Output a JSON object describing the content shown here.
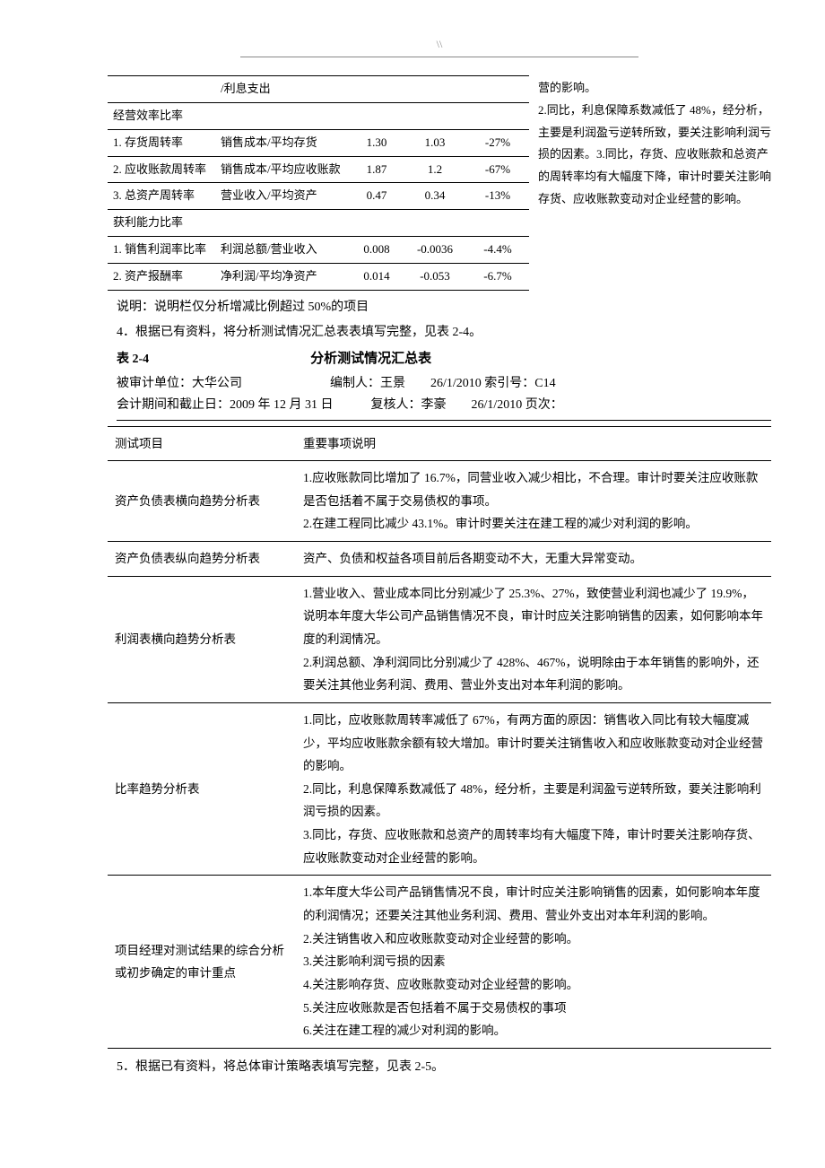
{
  "page_mark": "\\\\",
  "ratio_table": {
    "col_widths": [
      "120px",
      "150px",
      "60px",
      "70px",
      "70px"
    ],
    "rows": [
      {
        "c0": "",
        "c1": "/利息支出",
        "c2": "",
        "c3": "",
        "c4": ""
      },
      {
        "c0": "经营效率比率",
        "c1": "",
        "c2": "",
        "c3": "",
        "c4": ""
      },
      {
        "c0": "1. 存货周转率",
        "c1": "销售成本/平均存货",
        "c2": "1.30",
        "c3": "1.03",
        "c4": "-27%"
      },
      {
        "c0": "2. 应收账款周转率",
        "c1": "销售成本/平均应收账款",
        "c2": "1.87",
        "c3": "1.2",
        "c4": "-67%"
      },
      {
        "c0": "3. 总资产周转率",
        "c1": "营业收入/平均资产",
        "c2": "0.47",
        "c3": "0.34",
        "c4": "-13%"
      },
      {
        "c0": "获利能力比率",
        "c1": "",
        "c2": "",
        "c3": "",
        "c4": ""
      },
      {
        "c0": "1. 销售利润率比率",
        "c1": "利润总额/营业收入",
        "c2": "0.008",
        "c3": "-0.0036",
        "c4": "-4.4%"
      },
      {
        "c0": "2. 资产报酬率",
        "c1": "净利润/平均净资产",
        "c2": "0.014",
        "c3": "-0.053",
        "c4": "-6.7%"
      }
    ]
  },
  "side_note": "营的影响。\n2.同比，利息保障系数减低了 48%，经分析，主要是利润盈亏逆转所致，要关注影响利润亏损的因素。3.同比，存货、应收账款和总资产的周转率均有大幅度下降，审计时要关注影响存货、应收账款变动对企业经营的影响。",
  "note_after_ratio": "说明：说明栏仅分析增减比例超过 50%的项目",
  "section4": "4．根据已有资料，将分析测试情况汇总表表填写完整，见表 2-4。",
  "table24": {
    "label": "表 2-4",
    "title": "分析测试情况汇总表",
    "meta1": "被审计单位：大华公司　　　　　　　编制人：王景　　26/1/2010 索引号：C14",
    "meta2": "会计期间和截止日：2009 年 12 月 31 日　　　复核人：李豪　　26/1/2010 页次：",
    "head_left": "测试项目",
    "head_right": "重要事项说明",
    "rows": [
      {
        "left": "资产负债表横向趋势分析表",
        "right": "1.应收账款同比增加了 16.7%，同营业收入减少相比，不合理。审计时要关注应收账款是否包括着不属于交易债权的事项。\n2.在建工程同比减少 43.1%。审计时要关注在建工程的减少对利润的影响。"
      },
      {
        "left": "资产负债表纵向趋势分析表",
        "right": "资产、负债和权益各项目前后各期变动不大，无重大异常变动。"
      },
      {
        "left": "利润表横向趋势分析表",
        "right": "1.营业收入、营业成本同比分别减少了 25.3%、27%，致使营业利润也减少了 19.9%，说明本年度大华公司产品销售情况不良，审计时应关注影响销售的因素，如何影响本年度的利润情况。\n2.利润总额、净利润同比分别减少了 428%、467%，说明除由于本年销售的影响外，还要关注其他业务利润、费用、营业外支出对本年利润的影响。"
      },
      {
        "left": "比率趋势分析表",
        "right": "1.同比，应收账款周转率减低了 67%，有两方面的原因：销售收入同比有较大幅度减少，平均应收账款余额有较大增加。审计时要关注销售收入和应收账款变动对企业经营的影响。\n2.同比，利息保障系数减低了 48%，经分析，主要是利润盈亏逆转所致，要关注影响利润亏损的因素。\n3.同比，存货、应收账款和总资产的周转率均有大幅度下降，审计时要关注影响存货、应收账款变动对企业经营的影响。"
      },
      {
        "left": "项目经理对测试结果的综合分析或初步确定的审计重点",
        "right": "1.本年度大华公司产品销售情况不良，审计时应关注影响销售的因素，如何影响本年度的利润情况；还要关注其他业务利润、费用、营业外支出对本年利润的影响。\n2.关注销售收入和应收账款变动对企业经营的影响。\n3.关注影响利润亏损的因素\n4.关注影响存货、应收账款变动对企业经营的影响。\n5.关注应收账款是否包括着不属于交易债权的事项\n6.关注在建工程的减少对利润的影响。"
      }
    ]
  },
  "section5": "5．根据已有资料，将总体审计策略表填写完整，见表 2-5。"
}
